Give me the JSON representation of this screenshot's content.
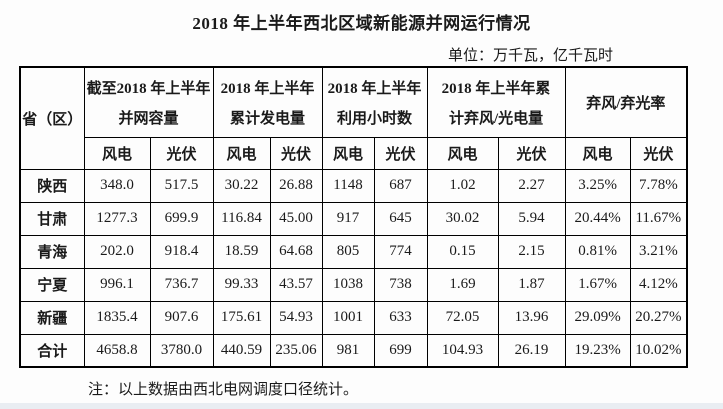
{
  "page": {
    "title": "2018 年上半年西北区域新能源并网运行情况",
    "unit_label": "单位：万千瓦，亿千瓦时",
    "note": "注：以上数据由西北电网调度口径统计。"
  },
  "colors": {
    "text": "#1a1a1a",
    "table_border": "#000000",
    "page_background": "#fdfdfd",
    "bottom_strip": "#e9edf2"
  },
  "table": {
    "corner_header": "省（区）",
    "groups": [
      {
        "line1": "截至2018 年上半年",
        "line2": "并网容量"
      },
      {
        "line1": "2018 年上半年",
        "line2": "累计发电量"
      },
      {
        "line1": "2018 年上半年",
        "line2": "利用小时数"
      },
      {
        "line1": "2018 年上半年累",
        "line2": "计弃风/光电量"
      },
      {
        "line1": "弃风/弃光率",
        "line2": ""
      }
    ],
    "sub_headers": [
      "风电",
      "光伏"
    ],
    "rows": [
      {
        "province": "陕西",
        "values": [
          "348.0",
          "517.5",
          "30.22",
          "26.88",
          "1148",
          "687",
          "1.02",
          "2.27",
          "3.25%",
          "7.78%"
        ]
      },
      {
        "province": "甘肃",
        "values": [
          "1277.3",
          "699.9",
          "116.84",
          "45.00",
          "917",
          "645",
          "30.02",
          "5.94",
          "20.44%",
          "11.67%"
        ]
      },
      {
        "province": "青海",
        "values": [
          "202.0",
          "918.4",
          "18.59",
          "64.68",
          "805",
          "774",
          "0.15",
          "2.15",
          "0.81%",
          "3.21%"
        ]
      },
      {
        "province": "宁夏",
        "values": [
          "996.1",
          "736.7",
          "99.33",
          "43.57",
          "1038",
          "738",
          "1.69",
          "1.87",
          "1.67%",
          "4.12%"
        ]
      },
      {
        "province": "新疆",
        "values": [
          "1835.4",
          "907.6",
          "175.61",
          "54.93",
          "1001",
          "633",
          "72.05",
          "13.96",
          "29.09%",
          "20.27%"
        ]
      },
      {
        "province": "合计",
        "values": [
          "4658.8",
          "3780.0",
          "440.59",
          "235.06",
          "981",
          "699",
          "104.93",
          "26.19",
          "19.23%",
          "10.02%"
        ]
      }
    ]
  }
}
